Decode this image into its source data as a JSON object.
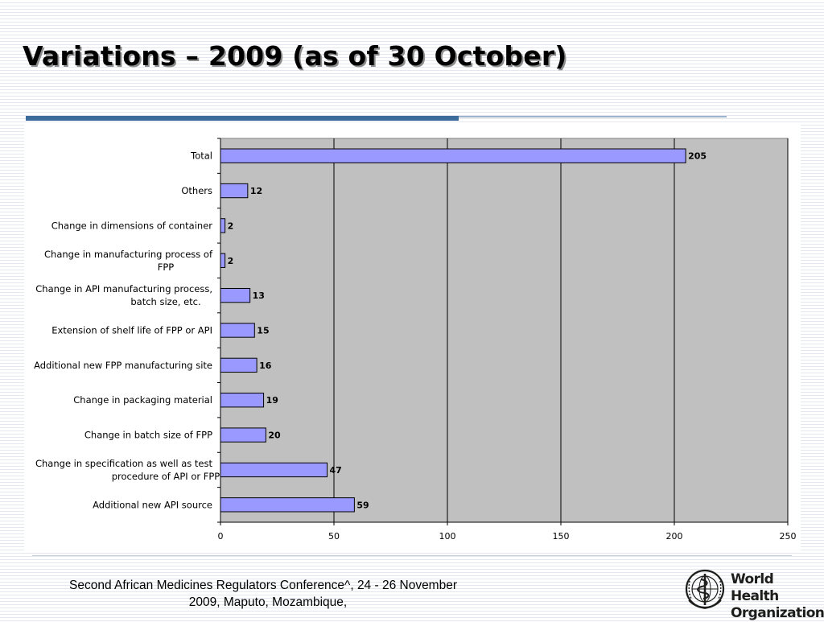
{
  "slide": {
    "title": "Variations – 2009 (as of 30 October)",
    "footer_line1": "Second African Medicines Regulators Conference^, 24 - 26 November",
    "footer_line2": "2009, Maputo, Mozambique,",
    "logo_line1": "World Health",
    "logo_line2": "Organization",
    "logo_icon": "who-emblem-icon"
  },
  "colors": {
    "bar_fill": "#9999ff",
    "bar_stroke": "#000000",
    "plot_background": "#c0c0c0",
    "title_rule": "#3d6b9c",
    "title_rule_light": "#9cb3cf"
  },
  "chart_data": {
    "type": "bar",
    "orientation": "horizontal",
    "categories": [
      [
        "Total"
      ],
      [
        "Others"
      ],
      [
        "Change in dimensions of container"
      ],
      [
        "Change in manufacturing process of",
        "FPP"
      ],
      [
        "Change in API manufacturing process,",
        "batch size, etc."
      ],
      [
        "Extension of shelf life of FPP or API"
      ],
      [
        "Additional new FPP manufacturing site"
      ],
      [
        "Change in packaging material"
      ],
      [
        "Change in batch size of FPP"
      ],
      [
        "Change in specification as well as test",
        "procedure of API or FPP"
      ],
      [
        "Additional new API source"
      ]
    ],
    "values": [
      205,
      12,
      2,
      2,
      13,
      15,
      16,
      19,
      20,
      47,
      59
    ],
    "title": "",
    "xlabel": "",
    "ylabel": "",
    "xlim": [
      0,
      250
    ],
    "xticks": [
      0,
      50,
      100,
      150,
      200,
      250
    ],
    "grid": true,
    "data_labels": true,
    "legend": "none"
  }
}
